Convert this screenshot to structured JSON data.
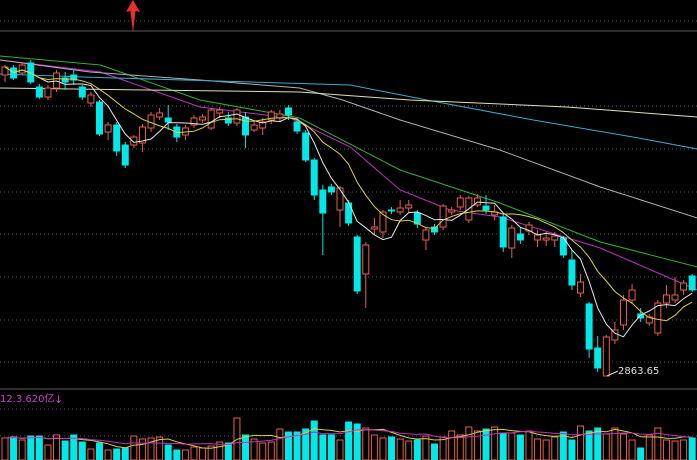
{
  "chart_data": {
    "type": "candlestick",
    "title": "",
    "grid": true,
    "colors": {
      "up": "#e8604c",
      "down": "#00e8e8",
      "background": "#000000",
      "grid": "#555555",
      "arrow": "#e8302a",
      "vol_label": "#d040d0"
    },
    "candles": [
      [
        3165,
        3173,
        3175,
        3158
      ],
      [
        3172,
        3162,
        3175,
        3160
      ],
      [
        3167,
        3175,
        3178,
        3165
      ],
      [
        3177,
        3158,
        3180,
        3156
      ],
      [
        3153,
        3143,
        3156,
        3141
      ],
      [
        3143,
        3152,
        3155,
        3140
      ],
      [
        3152,
        3167,
        3170,
        3148
      ],
      [
        3162,
        3158,
        3168,
        3150
      ],
      [
        3165,
        3160,
        3170,
        3155
      ],
      [
        3153,
        3143,
        3155,
        3140
      ],
      [
        3137,
        3145,
        3148,
        3133
      ],
      [
        3138,
        3106,
        3140,
        3104
      ],
      [
        3108,
        3115,
        3118,
        3100
      ],
      [
        3115,
        3089,
        3118,
        3084
      ],
      [
        3095,
        3075,
        3098,
        3072
      ],
      [
        3095,
        3103,
        3105,
        3092
      ],
      [
        3097,
        3113,
        3116,
        3088
      ],
      [
        3112,
        3125,
        3128,
        3108
      ],
      [
        3123,
        3127,
        3132,
        3120
      ],
      [
        3122,
        3118,
        3135,
        3110
      ],
      [
        3113,
        3103,
        3116,
        3098
      ],
      [
        3105,
        3112,
        3115,
        3100
      ],
      [
        3115,
        3122,
        3125,
        3112
      ],
      [
        3120,
        3123,
        3126,
        3117
      ],
      [
        3112,
        3130,
        3132,
        3110
      ],
      [
        3127,
        3130,
        3133,
        3122
      ],
      [
        3122,
        3117,
        3128,
        3114
      ],
      [
        3117,
        3130,
        3132,
        3114
      ],
      [
        3123,
        3105,
        3128,
        3092
      ],
      [
        3110,
        3115,
        3118,
        3108
      ],
      [
        3112,
        3118,
        3122,
        3105
      ],
      [
        3120,
        3128,
        3130,
        3116
      ],
      [
        3122,
        3126,
        3130,
        3118
      ],
      [
        3132,
        3125,
        3135,
        3120
      ],
      [
        3118,
        3109,
        3120,
        3106
      ],
      [
        3107,
        3080,
        3110,
        3078
      ],
      [
        3080,
        3045,
        3082,
        3040
      ],
      [
        3050,
        3027,
        3055,
        2985
      ],
      [
        3053,
        3048,
        3056,
        3045
      ],
      [
        3030,
        3052,
        3054,
        3013
      ],
      [
        3037,
        3017,
        3040,
        3014
      ],
      [
        3003,
        2949,
        3005,
        2946
      ],
      [
        2966,
        2995,
        2998,
        2932
      ],
      [
        3011,
        3013,
        3022,
        3005
      ],
      [
        3008,
        3028,
        3030,
        3002
      ],
      [
        3030,
        3029,
        3033,
        3026
      ],
      [
        3028,
        3032,
        3040,
        3025
      ],
      [
        3032,
        3035,
        3040,
        3028
      ],
      [
        3027,
        3016,
        3030,
        3012
      ],
      [
        3000,
        3010,
        3013,
        2990
      ],
      [
        3013,
        3008,
        3016,
        3005
      ],
      [
        3013,
        3034,
        3036,
        3010
      ],
      [
        3028,
        3030,
        3033,
        3025
      ],
      [
        3033,
        3042,
        3045,
        3030
      ],
      [
        3020,
        3042,
        3044,
        3017
      ],
      [
        3035,
        3042,
        3046,
        3033
      ],
      [
        3034,
        3030,
        3045,
        3026
      ],
      [
        3025,
        3028,
        3035,
        3020
      ],
      [
        3023,
        2993,
        3026,
        2988
      ],
      [
        2992,
        3012,
        3015,
        2982
      ],
      [
        3006,
        3000,
        3012,
        2996
      ],
      [
        3009,
        3015,
        3018,
        3005
      ],
      [
        3000,
        3005,
        3010,
        2993
      ],
      [
        3000,
        3002,
        3008,
        2994
      ],
      [
        3000,
        3004,
        3008,
        2993
      ],
      [
        3002,
        2985,
        3004,
        2982
      ],
      [
        2980,
        2955,
        2990,
        2950
      ],
      [
        2947,
        2958,
        2966,
        2943
      ],
      [
        2936,
        2891,
        2938,
        2882
      ],
      [
        2892,
        2872,
        2904,
        2868
      ],
      [
        2864,
        2903,
        2905,
        2863.65
      ],
      [
        2900,
        2910,
        2918,
        2896
      ],
      [
        2915,
        2940,
        2945,
        2910
      ],
      [
        2940,
        2950,
        2956,
        2936
      ],
      [
        2926,
        2922,
        2932,
        2918
      ],
      [
        2917,
        2923,
        2926,
        2914
      ],
      [
        2907,
        2937,
        2940,
        2904
      ],
      [
        2937,
        2945,
        2955,
        2932
      ],
      [
        2940,
        2945,
        2963,
        2937
      ],
      [
        2950,
        2957,
        2960,
        2945
      ],
      [
        2964,
        2950,
        2966,
        2948
      ]
    ],
    "candle_fields": [
      "open",
      "close",
      "high",
      "low"
    ],
    "volume": [
      22,
      23,
      20,
      24,
      24,
      15,
      25,
      19,
      25,
      18,
      11,
      17,
      10,
      11,
      12,
      24,
      21,
      22,
      23,
      15,
      10,
      10,
      13,
      12,
      14,
      18,
      17,
      42,
      25,
      21,
      17,
      18,
      31,
      28,
      28,
      31,
      39,
      25,
      25,
      20,
      38,
      36,
      32,
      25,
      22,
      23,
      21,
      19,
      20,
      24,
      16,
      23,
      29,
      25,
      33,
      29,
      31,
      33,
      27,
      27,
      25,
      29,
      21,
      20,
      23,
      28,
      20,
      34,
      29,
      32,
      26,
      32,
      26,
      20,
      12,
      25,
      32,
      20,
      19,
      20,
      22
    ],
    "moving_averages": [
      {
        "period": 5,
        "color": "#e8e8e8",
        "source": "close"
      },
      {
        "period": 10,
        "color": "#d8d040",
        "source": "close"
      }
    ],
    "long_ma_lines": [
      {
        "color": "#c030c0",
        "points": [
          [
            -0.6,
            3180
          ],
          [
            11.1,
            3168
          ],
          [
            22.7,
            3133
          ],
          [
            33.2,
            3122
          ],
          [
            40.2,
            3093
          ],
          [
            46.0,
            3050
          ],
          [
            51.8,
            3030
          ],
          [
            57.6,
            3023
          ],
          [
            69.3,
            2992
          ],
          [
            80.6,
            2950
          ]
        ]
      },
      {
        "color": "#30b030",
        "points": [
          [
            -0.6,
            3184
          ],
          [
            11.1,
            3175
          ],
          [
            22.7,
            3140
          ],
          [
            34.3,
            3122
          ],
          [
            46.0,
            3070
          ],
          [
            57.6,
            3037
          ],
          [
            69.3,
            2998
          ],
          [
            80.6,
            2973
          ]
        ]
      },
      {
        "color": "#b0b0b0",
        "points": [
          [
            -0.6,
            3180
          ],
          [
            9.9,
            3168
          ],
          [
            22.7,
            3160
          ],
          [
            34.3,
            3152
          ],
          [
            39.3,
            3140
          ],
          [
            46.0,
            3120
          ],
          [
            57.6,
            3090
          ],
          [
            69.3,
            3053
          ],
          [
            80.6,
            3022
          ]
        ]
      },
      {
        "color": "#40a8c8",
        "points": [
          [
            -0.6,
            3166
          ],
          [
            9.1,
            3163
          ],
          [
            40.2,
            3155
          ],
          [
            49.1,
            3140
          ],
          [
            61.5,
            3120
          ],
          [
            73.1,
            3103
          ],
          [
            80.6,
            3091
          ]
        ]
      },
      {
        "color": "#e0e0b0",
        "points": [
          [
            -0.6,
            3152
          ],
          [
            34.3,
            3148
          ],
          [
            47.1,
            3140
          ],
          [
            65.4,
            3133
          ],
          [
            80.6,
            3123
          ]
        ]
      }
    ],
    "volume_ma_lines": [
      {
        "period": 5,
        "color": "#d8d040"
      },
      {
        "period": 10,
        "color": "#c030c0"
      }
    ],
    "annotations": {
      "low_label": "2863.65",
      "volume_label": "12.3.620亿",
      "volume_arrow": "↓",
      "signal_icon": "red-up-arrow"
    }
  }
}
